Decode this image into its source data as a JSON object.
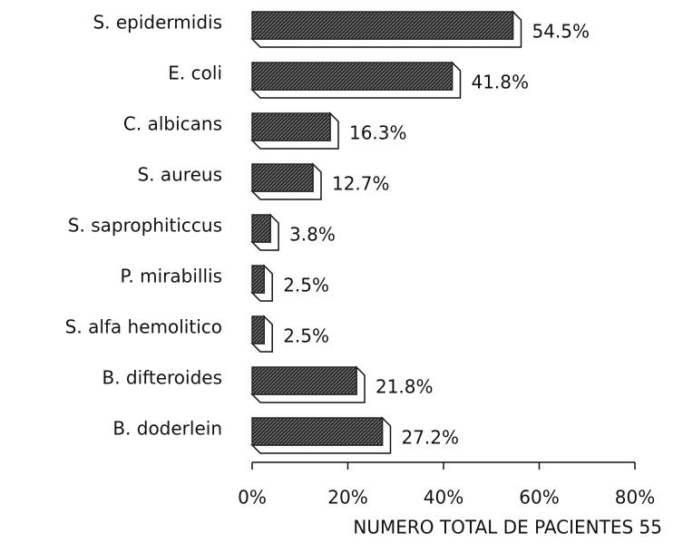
{
  "chart_data": {
    "type": "bar",
    "orientation": "horizontal",
    "categories": [
      "S. epidermidis",
      "E. coli",
      "C. albicans",
      "S. aureus",
      "S. saprophiticcus",
      "P. mirabillis",
      "S. alfa hemolitico",
      "B. difteroides",
      "B. doderlein"
    ],
    "values": [
      54.5,
      41.8,
      16.3,
      12.7,
      3.8,
      2.5,
      2.5,
      21.8,
      27.2
    ],
    "value_labels": [
      "54.5%",
      "41.8%",
      "16.3%",
      "12.7%",
      "3.8%",
      "2.5%",
      "2.5%",
      "21.8%",
      "27.2%"
    ],
    "color": "#262626",
    "xlim": [
      0,
      80
    ],
    "xticks": [
      {
        "value": 0,
        "label": "0%"
      },
      {
        "value": 20,
        "label": "20%"
      },
      {
        "value": 40,
        "label": "40%"
      },
      {
        "value": 60,
        "label": "60%"
      },
      {
        "value": 80,
        "label": "80%"
      }
    ],
    "x_label": "NUMERO TOTAL DE PACIENTES 55"
  }
}
